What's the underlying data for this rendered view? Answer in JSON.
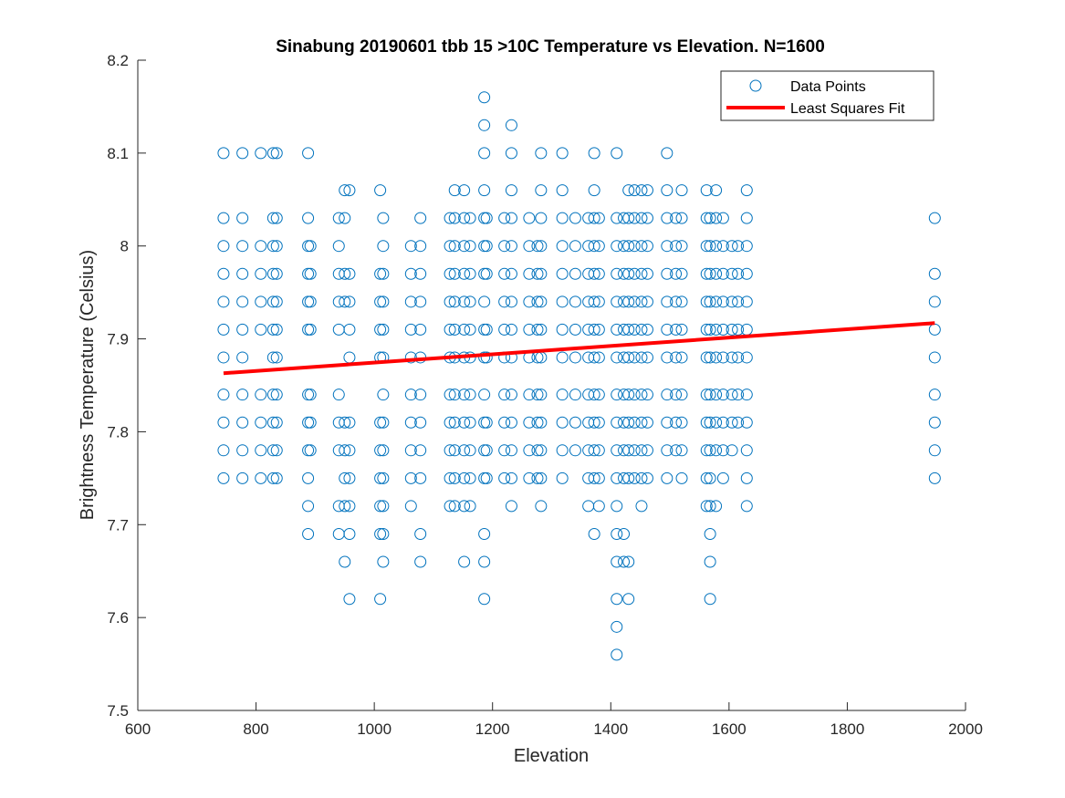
{
  "chart_data": {
    "type": "scatter",
    "title": "Sinabung 20190601 tbb 15 >10C Temperature vs Elevation. N=1600",
    "xlabel": "Elevation",
    "ylabel": "Brightness Temperature (Celsius)",
    "xlim": [
      600,
      2000
    ],
    "ylim": [
      7.5,
      8.2
    ],
    "xticks": [
      600,
      800,
      1000,
      1200,
      1400,
      1600,
      1800,
      2000
    ],
    "xtick_labels": [
      "600",
      "800",
      "1000",
      "1200",
      "1400",
      "1600",
      "1800",
      "2000"
    ],
    "yticks": [
      7.5,
      7.6,
      7.7,
      7.8,
      7.9,
      8.0,
      8.1,
      8.2
    ],
    "ytick_labels": [
      "7.5",
      "7.6",
      "7.7",
      "7.8",
      "7.9",
      "8",
      "8.1",
      "8.2"
    ],
    "grid": false,
    "legend_position": "top-right",
    "colors": {
      "points": "#0072bd",
      "fit": "#ff0000",
      "axis": "#262626"
    },
    "series": [
      {
        "name": "Data Points",
        "marker": "open-circle",
        "columns": [
          {
            "x": 745,
            "y": [
              7.75,
              7.78,
              7.81,
              7.84,
              7.88,
              7.91,
              7.94,
              7.97,
              8.0,
              8.03,
              8.1
            ]
          },
          {
            "x": 777,
            "y": [
              7.75,
              7.78,
              7.81,
              7.84,
              7.88,
              7.91,
              7.94,
              7.97,
              8.0,
              8.03,
              8.1
            ]
          },
          {
            "x": 808,
            "y": [
              7.75,
              7.78,
              7.81,
              7.84,
              7.91,
              7.94,
              7.97,
              8.0,
              8.1
            ]
          },
          {
            "x": 829,
            "y": [
              7.75,
              7.78,
              7.81,
              7.84,
              7.88,
              7.91,
              7.94,
              7.97,
              8.0,
              8.03,
              8.1
            ]
          },
          {
            "x": 835,
            "y": [
              7.75,
              7.78,
              7.81,
              7.84,
              7.88,
              7.91,
              7.94,
              7.97,
              8.0,
              8.03,
              8.1
            ]
          },
          {
            "x": 888,
            "y": [
              7.69,
              7.72,
              7.75,
              7.78,
              7.81,
              7.84,
              7.91,
              7.94,
              7.97,
              8.0,
              8.03,
              8.1
            ]
          },
          {
            "x": 892,
            "y": [
              7.78,
              7.81,
              7.84,
              7.91,
              7.94,
              7.97,
              8.0
            ]
          },
          {
            "x": 940,
            "y": [
              7.69,
              7.72,
              7.78,
              7.81,
              7.84,
              7.91,
              7.94,
              7.97,
              8.0,
              8.03
            ]
          },
          {
            "x": 950,
            "y": [
              7.66,
              7.72,
              7.75,
              7.78,
              7.81,
              7.94,
              7.97,
              8.03,
              8.06
            ]
          },
          {
            "x": 958,
            "y": [
              7.62,
              7.69,
              7.72,
              7.75,
              7.78,
              7.81,
              7.88,
              7.91,
              7.94,
              7.97,
              8.06
            ]
          },
          {
            "x": 1010,
            "y": [
              7.62,
              7.69,
              7.72,
              7.75,
              7.78,
              7.81,
              7.88,
              7.91,
              7.94,
              7.97,
              8.06
            ]
          },
          {
            "x": 1015,
            "y": [
              7.66,
              7.69,
              7.72,
              7.75,
              7.78,
              7.81,
              7.84,
              7.88,
              7.91,
              7.94,
              7.97,
              8.0,
              8.03
            ]
          },
          {
            "x": 1062,
            "y": [
              7.72,
              7.75,
              7.78,
              7.81,
              7.84,
              7.88,
              7.91,
              7.94,
              7.97,
              8.0
            ]
          },
          {
            "x": 1078,
            "y": [
              7.66,
              7.69,
              7.75,
              7.78,
              7.81,
              7.84,
              7.88,
              7.91,
              7.94,
              7.97,
              8.0,
              8.03
            ]
          },
          {
            "x": 1128,
            "y": [
              7.72,
              7.75,
              7.78,
              7.81,
              7.84,
              7.88,
              7.91,
              7.94,
              7.97,
              8.0,
              8.03
            ]
          },
          {
            "x": 1136,
            "y": [
              7.72,
              7.75,
              7.78,
              7.81,
              7.84,
              7.88,
              7.91,
              7.94,
              7.97,
              8.0,
              8.03,
              8.06
            ]
          },
          {
            "x": 1152,
            "y": [
              7.66,
              7.72,
              7.75,
              7.78,
              7.81,
              7.84,
              7.88,
              7.91,
              7.94,
              7.97,
              8.0,
              8.03,
              8.06
            ]
          },
          {
            "x": 1162,
            "y": [
              7.72,
              7.75,
              7.78,
              7.81,
              7.84,
              7.88,
              7.91,
              7.94,
              7.97,
              8.0,
              8.03
            ]
          },
          {
            "x": 1186,
            "y": [
              7.62,
              7.66,
              7.69,
              7.75,
              7.78,
              7.81,
              7.84,
              7.88,
              7.91,
              7.94,
              7.97,
              8.0,
              8.03,
              8.06,
              8.1,
              8.13,
              8.16
            ]
          },
          {
            "x": 1190,
            "y": [
              7.75,
              7.78,
              7.81,
              7.88,
              7.91,
              7.97,
              8.0,
              8.03
            ]
          },
          {
            "x": 1220,
            "y": [
              7.75,
              7.78,
              7.81,
              7.84,
              7.88,
              7.91,
              7.94,
              7.97,
              8.0,
              8.03
            ]
          },
          {
            "x": 1232,
            "y": [
              7.72,
              7.75,
              7.78,
              7.81,
              7.84,
              7.88,
              7.91,
              7.94,
              7.97,
              8.0,
              8.03,
              8.06,
              8.1,
              8.13
            ]
          },
          {
            "x": 1262,
            "y": [
              7.75,
              7.78,
              7.81,
              7.84,
              7.88,
              7.91,
              7.94,
              7.97,
              8.0,
              8.03
            ]
          },
          {
            "x": 1276,
            "y": [
              7.75,
              7.78,
              7.81,
              7.84,
              7.88,
              7.91,
              7.94,
              7.97,
              8.0
            ]
          },
          {
            "x": 1282,
            "y": [
              7.72,
              7.75,
              7.78,
              7.81,
              7.84,
              7.88,
              7.91,
              7.94,
              7.97,
              8.0,
              8.03,
              8.06,
              8.1
            ]
          },
          {
            "x": 1318,
            "y": [
              7.75,
              7.78,
              7.81,
              7.84,
              7.88,
              7.91,
              7.94,
              7.97,
              8.0,
              8.03,
              8.06,
              8.1
            ]
          },
          {
            "x": 1340,
            "y": [
              7.78,
              7.81,
              7.84,
              7.88,
              7.91,
              7.94,
              7.97,
              8.0,
              8.03
            ]
          },
          {
            "x": 1362,
            "y": [
              7.72,
              7.75,
              7.78,
              7.81,
              7.84,
              7.88,
              7.91,
              7.94,
              7.97,
              8.0,
              8.03
            ]
          },
          {
            "x": 1372,
            "y": [
              7.69,
              7.75,
              7.78,
              7.81,
              7.84,
              7.88,
              7.91,
              7.94,
              7.97,
              8.0,
              8.03,
              8.06,
              8.1
            ]
          },
          {
            "x": 1380,
            "y": [
              7.72,
              7.75,
              7.78,
              7.81,
              7.84,
              7.88,
              7.91,
              7.94,
              7.97,
              8.0,
              8.03
            ]
          },
          {
            "x": 1410,
            "y": [
              7.56,
              7.59,
              7.62,
              7.66,
              7.69,
              7.72,
              7.75,
              7.78,
              7.81,
              7.84,
              7.88,
              7.91,
              7.94,
              7.97,
              8.0,
              8.03,
              8.1
            ]
          },
          {
            "x": 1422,
            "y": [
              7.66,
              7.69,
              7.75,
              7.78,
              7.81,
              7.84,
              7.88,
              7.91,
              7.94,
              7.97,
              8.0,
              8.03
            ]
          },
          {
            "x": 1430,
            "y": [
              7.62,
              7.66,
              7.75,
              7.78,
              7.81,
              7.84,
              7.88,
              7.91,
              7.94,
              7.97,
              8.0,
              8.03,
              8.06
            ]
          },
          {
            "x": 1440,
            "y": [
              7.75,
              7.78,
              7.81,
              7.84,
              7.88,
              7.91,
              7.94,
              7.97,
              8.0,
              8.03,
              8.06
            ]
          },
          {
            "x": 1452,
            "y": [
              7.72,
              7.75,
              7.78,
              7.81,
              7.84,
              7.88,
              7.91,
              7.94,
              7.97,
              8.0,
              8.03,
              8.06
            ]
          },
          {
            "x": 1462,
            "y": [
              7.75,
              7.78,
              7.81,
              7.84,
              7.88,
              7.91,
              7.94,
              7.97,
              8.0,
              8.03,
              8.06
            ]
          },
          {
            "x": 1495,
            "y": [
              7.75,
              7.78,
              7.81,
              7.84,
              7.88,
              7.91,
              7.94,
              7.97,
              8.0,
              8.03,
              8.06,
              8.1
            ]
          },
          {
            "x": 1510,
            "y": [
              7.78,
              7.81,
              7.84,
              7.88,
              7.91,
              7.94,
              7.97,
              8.0,
              8.03
            ]
          },
          {
            "x": 1520,
            "y": [
              7.75,
              7.78,
              7.81,
              7.84,
              7.88,
              7.91,
              7.94,
              7.97,
              8.0,
              8.03,
              8.06
            ]
          },
          {
            "x": 1562,
            "y": [
              7.72,
              7.75,
              7.78,
              7.81,
              7.84,
              7.88,
              7.91,
              7.94,
              7.97,
              8.0,
              8.03,
              8.06
            ]
          },
          {
            "x": 1568,
            "y": [
              7.62,
              7.66,
              7.69,
              7.72,
              7.75,
              7.78,
              7.81,
              7.84,
              7.88,
              7.91,
              7.94,
              7.97,
              8.0,
              8.03
            ]
          },
          {
            "x": 1578,
            "y": [
              7.72,
              7.78,
              7.81,
              7.84,
              7.88,
              7.91,
              7.94,
              7.97,
              8.0,
              8.03,
              8.06
            ]
          },
          {
            "x": 1590,
            "y": [
              7.75,
              7.78,
              7.81,
              7.84,
              7.88,
              7.91,
              7.94,
              7.97,
              8.0,
              8.03
            ]
          },
          {
            "x": 1605,
            "y": [
              7.78,
              7.81,
              7.84,
              7.88,
              7.91,
              7.94,
              7.97,
              8.0
            ]
          },
          {
            "x": 1615,
            "y": [
              7.81,
              7.84,
              7.88,
              7.91,
              7.94,
              7.97,
              8.0
            ]
          },
          {
            "x": 1630,
            "y": [
              7.72,
              7.75,
              7.78,
              7.81,
              7.84,
              7.88,
              7.91,
              7.94,
              7.97,
              8.0,
              8.03,
              8.06
            ]
          },
          {
            "x": 1948,
            "y": [
              7.75,
              7.78,
              7.81,
              7.84,
              7.88,
              7.91,
              7.94,
              7.97,
              8.03
            ]
          }
        ]
      },
      {
        "name": "Least Squares Fit",
        "marker": "line",
        "x": [
          745,
          1948
        ],
        "y": [
          7.863,
          7.917
        ]
      }
    ]
  }
}
